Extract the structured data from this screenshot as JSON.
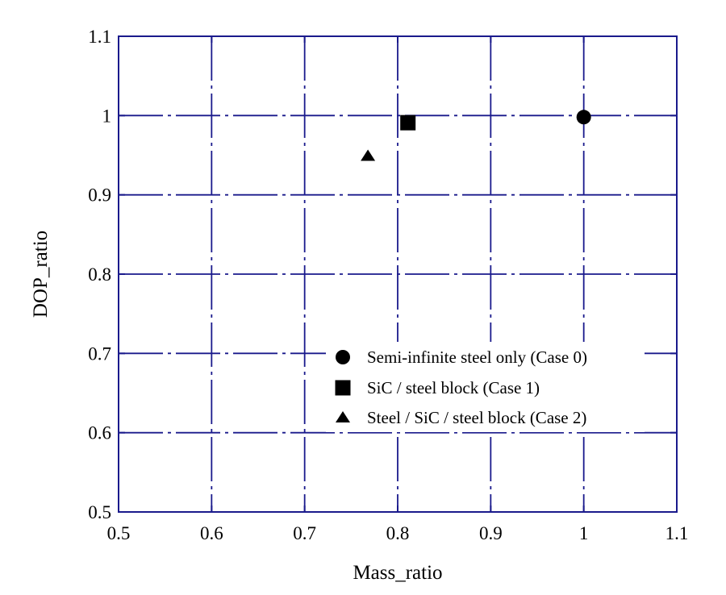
{
  "chart_data": {
    "type": "scatter",
    "title": "",
    "xlabel": "Mass_ratio",
    "ylabel": "DOP_ratio",
    "xlim": [
      0.5,
      1.1
    ],
    "ylim": [
      0.5,
      1.1
    ],
    "xticks": [
      0.5,
      0.6,
      0.7,
      0.8,
      0.9,
      1,
      1.1
    ],
    "yticks": [
      0.5,
      0.6,
      0.7,
      0.8,
      0.9,
      1,
      1.1
    ],
    "xtick_labels": [
      "0.5",
      "0.6",
      "0.7",
      "0.8",
      "0.9",
      "1",
      "1.1"
    ],
    "ytick_labels": [
      "0.5",
      "0.6",
      "0.7",
      "0.8",
      "0.9",
      "1",
      "1.1"
    ],
    "grid": true,
    "grid_style": "dash-dot",
    "grid_color": "#1a1a8c",
    "marker_color": "#000000",
    "legend_position": "lower-right",
    "series": [
      {
        "name": "Semi-infinite steel only (Case 0)",
        "marker": "circle",
        "points": [
          [
            1.0,
            0.998
          ]
        ]
      },
      {
        "name": "SiC / steel block (Case 1)",
        "marker": "square",
        "points": [
          [
            0.811,
            0.991
          ]
        ]
      },
      {
        "name": "Steel / SiC / steel block (Case 2)",
        "marker": "triangle",
        "points": [
          [
            0.768,
            0.949
          ]
        ]
      }
    ]
  }
}
